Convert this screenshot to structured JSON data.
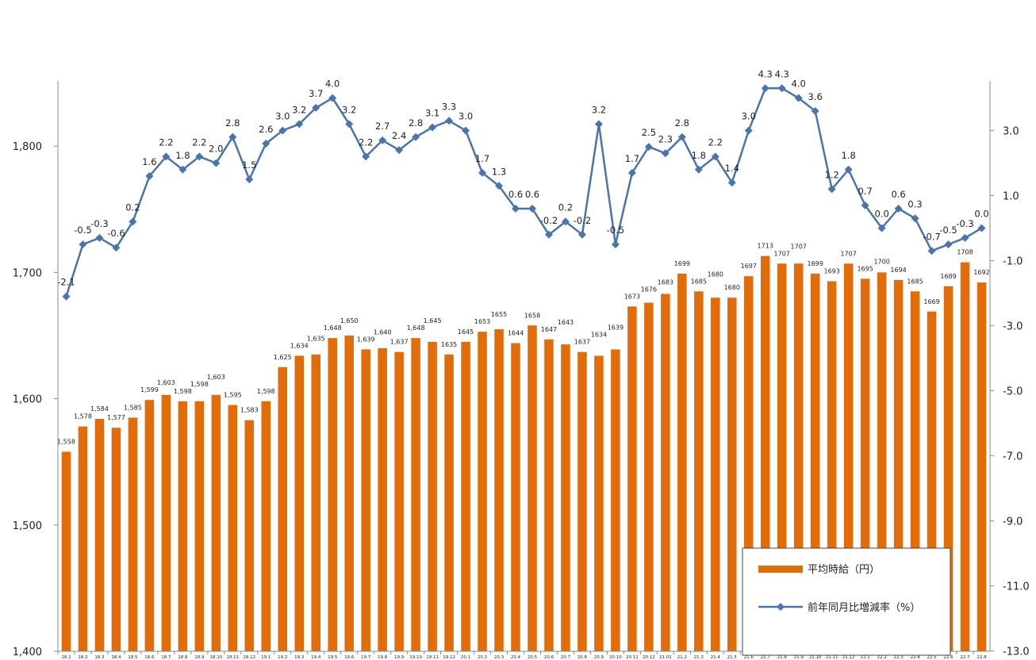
{
  "chart_data": {
    "type": "bar",
    "categories": [
      "18.1",
      "18.2",
      "18.3",
      "18.4",
      "18.5",
      "18.6",
      "18.7",
      "18.8",
      "18.9",
      "18.10",
      "18.11",
      "18.12",
      "19.1",
      "19.2",
      "19.3",
      "19.4",
      "19.5",
      "19.6",
      "19.7",
      "19.8",
      "19.9",
      "19.10",
      "19.11",
      "19.12",
      "20.1",
      "20.2",
      "20.3",
      "20.4",
      "20.5",
      "20.6",
      "20.7",
      "20.8",
      "20.9",
      "20.10",
      "20.11",
      "20.12",
      "21.01",
      "21.2",
      "21.3",
      "21.4",
      "21.5",
      "21.6",
      "21.7",
      "21.8",
      "21.9",
      "21.10",
      "21.11",
      "21.12",
      "22.1",
      "22.2",
      "22.3",
      "22.4",
      "22.5",
      "22.6",
      "22.7",
      "22.8"
    ],
    "series": [
      {
        "name": "平均時給（円）",
        "type": "bar",
        "axis": "left",
        "color": "#E36C0A",
        "values": [
          1558,
          1578,
          1584,
          1577,
          1585,
          1599,
          1603,
          1598,
          1598,
          1603,
          1595,
          1583,
          1598,
          1625,
          1634,
          1635,
          1648,
          1650,
          1639,
          1640,
          1637,
          1648,
          1645,
          1635,
          1645,
          1653,
          1655,
          1644,
          1658,
          1647,
          1643,
          1637,
          1634,
          1639,
          1673,
          1676,
          1683,
          1699,
          1685,
          1680,
          1680,
          1697,
          1713,
          1707,
          1707,
          1699,
          1693,
          1707,
          1695,
          1700,
          1694,
          1685,
          1669,
          1689,
          1708,
          1692
        ],
        "labels": [
          "1,558",
          "1,578",
          "1,584",
          "1,577",
          "1,585",
          "1,599",
          "1,603",
          "1,598",
          "1,598",
          "1,603",
          "1,595",
          "1,583",
          "1,598",
          "1,625",
          "1,634",
          "1,635",
          "1,648",
          "1,650",
          "1,639",
          "1,640",
          "1,637",
          "1,648",
          "1,645",
          "1635",
          "1645",
          "1653",
          "1655",
          "1644",
          "1658",
          "1647",
          "1643",
          "1637",
          "1634",
          "1639",
          "1673",
          "1676",
          "1683",
          "1699",
          "1685",
          "1680",
          "1680",
          "1697",
          "1713",
          "1707",
          "1707",
          "1699",
          "1693",
          "1707",
          "1695",
          "1700",
          "1694",
          "1685",
          "1669",
          "1689",
          "1708",
          "1692"
        ]
      },
      {
        "name": "前年同月比増減率（%）",
        "type": "line",
        "axis": "right",
        "color": "#4A74AE",
        "values": [
          -2.1,
          -0.5,
          -0.3,
          -0.6,
          0.2,
          1.6,
          2.2,
          1.8,
          2.2,
          2.0,
          2.8,
          1.5,
          2.6,
          3.0,
          3.2,
          3.7,
          4.0,
          3.2,
          2.2,
          2.7,
          2.4,
          2.8,
          3.1,
          3.3,
          3.0,
          1.7,
          1.3,
          0.6,
          0.6,
          -0.2,
          0.2,
          -0.2,
          3.2,
          -0.5,
          1.7,
          2.5,
          2.3,
          2.8,
          1.8,
          2.2,
          1.4,
          3.0,
          4.3,
          4.3,
          4.0,
          3.6,
          1.2,
          1.8,
          0.7,
          0.0,
          0.6,
          0.3,
          -0.7,
          -0.5,
          -0.3,
          0.0
        ],
        "labels": [
          "-2.1",
          "-0.5",
          "-0.3",
          "-0.6",
          "0.2",
          "1.6",
          "2.2",
          "1.8",
          "2.2",
          "2.0",
          "2.8",
          "1.5",
          "2.6",
          "3.0",
          "3.2",
          "3.7",
          "4.0",
          "3.2",
          "2.2",
          "2.7",
          "2.4",
          "2.8",
          "3.1",
          "3.3",
          "3.0",
          "1.7",
          "1.3",
          "0.6",
          "0.6",
          "-0.2",
          "0.2",
          "-0.2",
          "3.2",
          "-0.5",
          "1.7",
          "2.5",
          "2.3",
          "2.8",
          "1.8",
          "2.2",
          "1.4",
          "3.0",
          "4.3",
          "4.3",
          "4.0",
          "3.6",
          "1.2",
          "1.8",
          "0.7",
          "0.0",
          "0.6",
          "0.3",
          "-0.7",
          "-0.5",
          "-0.3",
          "0.0"
        ]
      }
    ],
    "y_left": {
      "ylim": [
        1400,
        1900
      ],
      "ticks": [
        1400,
        1500,
        1600,
        1700,
        1800
      ],
      "tick_labels": [
        "1,400",
        "1,500",
        "1,600",
        "1,700",
        "1,800"
      ]
    },
    "y_right": {
      "ylim": [
        -13.0,
        5.0
      ],
      "ticks": [
        -13,
        -11,
        -9,
        -7,
        -5,
        -3,
        -1,
        1,
        3
      ],
      "tick_labels": [
        "-13.0",
        "-11.0",
        "-9.0",
        "-7.0",
        "-5.0",
        "-3.0",
        "-1.0",
        "1.0",
        "3.0"
      ]
    },
    "grid": false,
    "legend_position": "bottom-right"
  }
}
